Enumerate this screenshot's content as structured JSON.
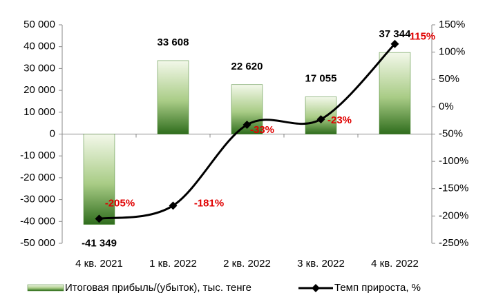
{
  "chart_data": {
    "type": "bar_line",
    "categories": [
      "4 кв. 2021",
      "1 кв. 2022",
      "2 кв. 2022",
      "3 кв. 2022",
      "4 кв. 2022"
    ],
    "series": [
      {
        "name": "Итоговая прибыль/(убыток), тыс. тенге",
        "type": "bar",
        "color": "#3f7f25",
        "values": [
          -41349,
          33608,
          22620,
          17055,
          37344
        ],
        "value_labels": [
          "-41 349",
          "33 608",
          "22 620",
          "17 055",
          "37 344"
        ]
      },
      {
        "name": "Темп прироста, %",
        "type": "line",
        "axis": "y2",
        "color": "#000000",
        "values": [
          -205,
          -181,
          -33,
          -23,
          115
        ],
        "value_labels": [
          "-205%",
          "-181%",
          "-33%",
          "-23%",
          "115%"
        ]
      }
    ],
    "ylim": [
      -50000,
      50000
    ],
    "yticks": [
      {
        "value": -50000,
        "label": "-50 000"
      },
      {
        "value": -40000,
        "label": "-40 000"
      },
      {
        "value": -30000,
        "label": "-30 000"
      },
      {
        "value": -20000,
        "label": "-20 000"
      },
      {
        "value": -10000,
        "label": "-10 000"
      },
      0,
      {
        "value": 10000,
        "label": "10 000"
      },
      {
        "value": 20000,
        "label": "20 000"
      },
      {
        "value": 30000,
        "label": "30 000"
      },
      {
        "value": 40000,
        "label": "40 000"
      },
      {
        "value": 50000,
        "label": "50 000"
      }
    ],
    "y2lim": [
      -250,
      150
    ],
    "y2ticks": [
      {
        "value": -250,
        "label": "-250%"
      },
      {
        "value": -200,
        "label": "-200%"
      },
      {
        "value": -150,
        "label": "-150%"
      },
      {
        "value": -100,
        "label": "-100%"
      },
      {
        "value": -50,
        "label": "-50%"
      },
      {
        "value": 0,
        "label": "0%"
      },
      {
        "value": 50,
        "label": "50%"
      },
      {
        "value": 100,
        "label": "100%"
      },
      {
        "value": 150,
        "label": "150%"
      }
    ],
    "legend": "bottom"
  }
}
